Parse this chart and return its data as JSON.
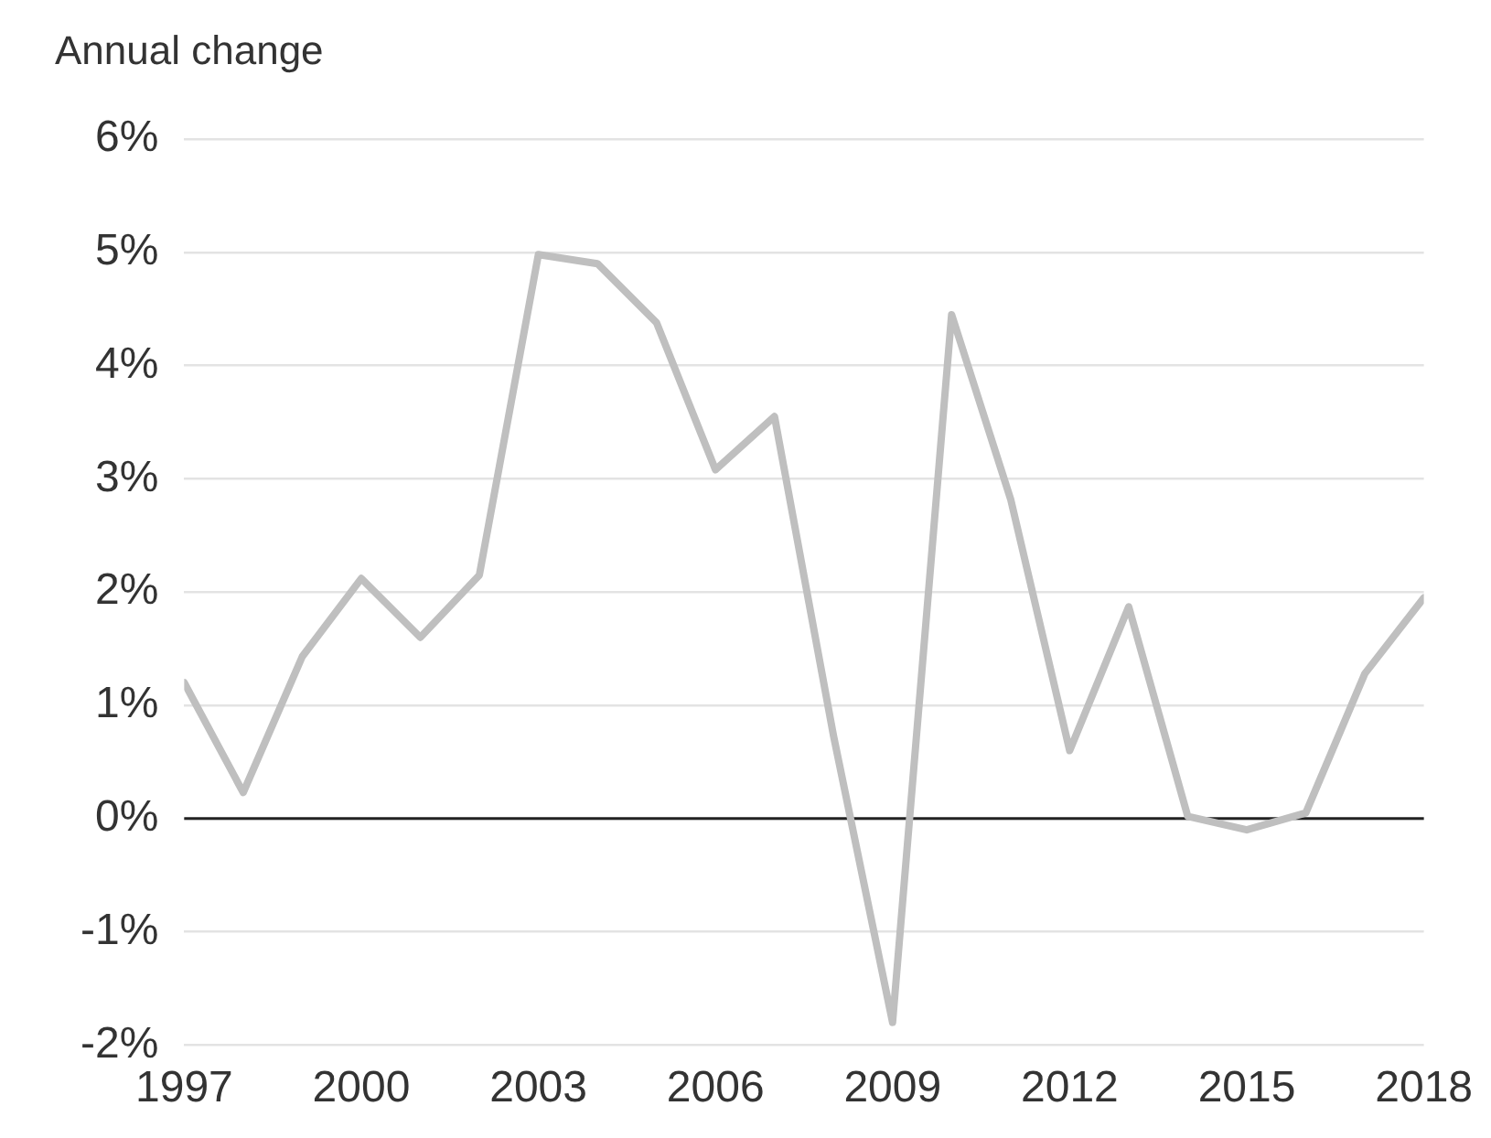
{
  "chart_data": {
    "type": "line",
    "ylabel": "Annual change",
    "x": [
      1997,
      1998,
      1999,
      2000,
      2001,
      2002,
      2003,
      2004,
      2005,
      2006,
      2007,
      2008,
      2009,
      2010,
      2011,
      2012,
      2013,
      2014,
      2015,
      2016,
      2017,
      2018
    ],
    "series": [
      {
        "color": "#bfbfbf",
        "values": [
          1.2,
          0.23,
          1.43,
          2.12,
          1.6,
          2.15,
          4.98,
          4.9,
          4.38,
          3.08,
          3.55,
          0.73,
          -1.8,
          4.45,
          2.82,
          0.6,
          1.87,
          0.02,
          -0.1,
          0.05,
          1.28,
          1.95
        ]
      }
    ],
    "xlim": [
      1997,
      2018
    ],
    "xticks": [
      1997,
      2000,
      2003,
      2006,
      2009,
      2012,
      2015,
      2018
    ],
    "ylim": [
      -2,
      6
    ],
    "yticks": [
      {
        "value": -2,
        "label": "-2%"
      },
      {
        "value": -1,
        "label": "-1%"
      },
      {
        "value": 0,
        "label": "0%"
      },
      {
        "value": 1,
        "label": "1%"
      },
      {
        "value": 2,
        "label": "2%"
      },
      {
        "value": 3,
        "label": "3%"
      },
      {
        "value": 4,
        "label": "4%"
      },
      {
        "value": 5,
        "label": "5%"
      },
      {
        "value": 6,
        "label": "6%"
      }
    ],
    "ref_lines": [
      {
        "axis": "y",
        "value": 0,
        "color": "#222222"
      }
    ],
    "grid": "y",
    "legend": false,
    "marker": "none",
    "line_style": "solid"
  }
}
